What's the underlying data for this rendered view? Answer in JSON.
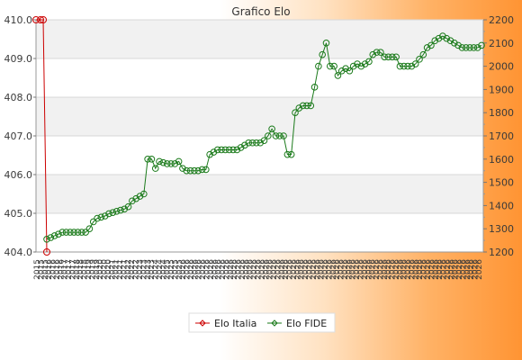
{
  "chart_data": {
    "type": "line",
    "title": "Grafico Elo",
    "legend_position": "bottom-center",
    "grid": true,
    "y_left": {
      "range": [
        404.0,
        410.0
      ],
      "ticks": [
        "404.0",
        "405.0",
        "406.0",
        "407.0",
        "408.0",
        "409.0",
        "410.0"
      ]
    },
    "y_right": {
      "range": [
        1200,
        2200
      ],
      "ticks": [
        "1200",
        "1300",
        "1400",
        "1500",
        "1600",
        "1700",
        "1800",
        "1900",
        "2000",
        "2100",
        "2200"
      ]
    },
    "series": [
      {
        "name": "Elo Italia",
        "axis": "left",
        "color": "#cc0000",
        "values": [
          410.0,
          410.0,
          410.0,
          404.0
        ]
      },
      {
        "name": "Elo FIDE",
        "axis": "right",
        "color": "#1a7a1a",
        "values": [
          1255,
          1262,
          1270,
          1277,
          1285,
          1285,
          1285,
          1285,
          1285,
          1285,
          1285,
          1300,
          1330,
          1345,
          1350,
          1355,
          1365,
          1370,
          1375,
          1380,
          1385,
          1395,
          1420,
          1430,
          1440,
          1450,
          1600,
          1600,
          1560,
          1590,
          1585,
          1580,
          1580,
          1580,
          1590,
          1560,
          1550,
          1550,
          1550,
          1550,
          1555,
          1555,
          1620,
          1630,
          1640,
          1640,
          1640,
          1640,
          1640,
          1640,
          1650,
          1660,
          1670,
          1670,
          1670,
          1670,
          1680,
          1700,
          1730,
          1700,
          1700,
          1700,
          1620,
          1620,
          1800,
          1820,
          1830,
          1830,
          1830,
          1910,
          2000,
          2050,
          2100,
          2000,
          2000,
          1960,
          1980,
          1990,
          1980,
          2000,
          2010,
          2000,
          2010,
          2020,
          2050,
          2060,
          2060,
          2040,
          2040,
          2040,
          2040,
          2000,
          2000,
          2000,
          2000,
          2010,
          2030,
          2050,
          2080,
          2090,
          2110,
          2120,
          2130,
          2120,
          2110,
          2100,
          2090,
          2080,
          2080,
          2080,
          2080,
          2080,
          2090
        ]
      }
    ],
    "x_tick_labels": [
      "2015",
      "2015",
      "2015",
      "2016",
      "2016",
      "2016",
      "2016",
      "2017",
      "2017",
      "2017",
      "2018",
      "2018",
      "2018",
      "2019",
      "2019",
      "2019",
      "2020",
      "2020",
      "2020",
      "2021",
      "2021",
      "2021",
      "2021",
      "2022",
      "2022",
      "2022",
      "2023",
      "2023",
      "2023",
      "2023",
      "2024",
      "2024",
      "2024",
      "2025",
      "2025",
      "2025",
      "2025",
      "2026",
      "2026",
      "2026",
      "2026",
      "2026",
      "2026",
      "2026",
      "2026",
      "2026",
      "2026",
      "2026",
      "2026",
      "2026",
      "2026",
      "2026",
      "2026",
      "2026",
      "2026",
      "2026",
      "2026",
      "2026",
      "2026",
      "2026",
      "2026",
      "2026",
      "2026",
      "2026",
      "2026",
      "2026",
      "2026",
      "2026",
      "2026",
      "2026",
      "2026",
      "2026",
      "2026",
      "2026",
      "2026",
      "2026",
      "2026",
      "2026",
      "2026",
      "2026",
      "2026",
      "2026",
      "2026",
      "2026",
      "2026",
      "2026",
      "2026",
      "2026",
      "2026",
      "2026",
      "2026",
      "2026",
      "2026",
      "2026",
      "2026",
      "2026",
      "2026",
      "2026",
      "2026",
      "2026",
      "2026",
      "2026",
      "2026",
      "2026",
      "2026",
      "2026",
      "2026",
      "2026",
      "2026",
      "2026",
      "2026",
      "2026",
      "2026"
    ]
  }
}
